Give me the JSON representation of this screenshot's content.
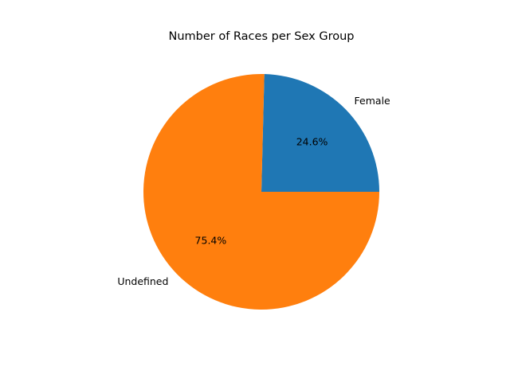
{
  "chart_data": {
    "type": "pie",
    "title": "Number of Races per Sex Group",
    "slices": [
      {
        "label": "Female",
        "percent_label": "24.6%",
        "value": 24.6,
        "color": "#1f77b4"
      },
      {
        "label": "Undefined",
        "percent_label": "75.4%",
        "value": 75.4,
        "color": "#ff7f0e"
      }
    ],
    "start_angle_deg": 0,
    "counterclockwise": true,
    "autopct": true
  }
}
